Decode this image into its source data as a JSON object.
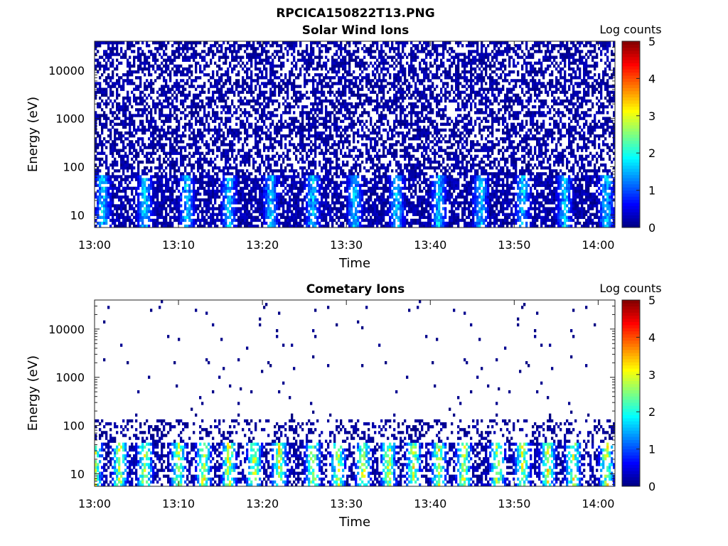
{
  "figure_title": "RPCICA150822T13.PNG",
  "chart_data": [
    {
      "type": "heatmap",
      "title": "Solar Wind Ions",
      "xlabel": "Time",
      "ylabel": "Energy (eV)",
      "x_ticks": [
        "13:00",
        "13:10",
        "13:20",
        "13:30",
        "13:40",
        "13:50",
        "14:00"
      ],
      "x_range": [
        "13:00",
        "14:02"
      ],
      "y_scale": "log",
      "y_ticks": [
        "10",
        "100",
        "1000",
        "10000"
      ],
      "y_range": [
        5.5,
        40000
      ],
      "colorbar": {
        "label": "Log counts",
        "ticks": [
          "0",
          "1",
          "2",
          "3",
          "4",
          "5"
        ],
        "range": [
          0,
          5
        ],
        "colormap": "jet"
      },
      "bands": [
        {
          "e_low": 5.5,
          "e_high": 70,
          "density": 0.75,
          "level_min": 0,
          "level_max": 1.9,
          "peak_period_min": 5.2
        },
        {
          "e_low": 70,
          "e_high": 40000,
          "density": 0.55,
          "level_min": 0,
          "level_max": 0.35,
          "peak_period_min": 0
        }
      ],
      "peaks_at": [
        "13:01",
        "13:06",
        "13:11",
        "13:16",
        "13:21",
        "13:26",
        "13:31",
        "13:36",
        "13:41",
        "13:46",
        "13:51",
        "13:56",
        "14:01"
      ]
    },
    {
      "type": "heatmap",
      "title": "Cometary Ions",
      "xlabel": "Time",
      "ylabel": "Energy (eV)",
      "x_ticks": [
        "13:00",
        "13:10",
        "13:20",
        "13:30",
        "13:40",
        "13:50",
        "14:00"
      ],
      "x_range": [
        "13:00",
        "14:02"
      ],
      "y_scale": "log",
      "y_ticks": [
        "10",
        "100",
        "1000",
        "10000"
      ],
      "y_range": [
        5.5,
        40000
      ],
      "colorbar": {
        "label": "Log counts",
        "ticks": [
          "0",
          "1",
          "2",
          "3",
          "4",
          "5"
        ],
        "range": [
          0,
          5
        ],
        "colormap": "jet"
      },
      "bands": [
        {
          "e_low": 5.5,
          "e_high": 45,
          "density": 0.55,
          "level_min": 0,
          "level_max": 3.4,
          "peak_period_min": 3.2
        },
        {
          "e_low": 45,
          "e_high": 140,
          "density": 0.28,
          "level_min": 0,
          "level_max": 0.25,
          "peak_period_min": 0
        },
        {
          "e_low": 140,
          "e_high": 40000,
          "density": 0.012,
          "level_min": 0,
          "level_max": 0.1,
          "peak_period_min": 0
        }
      ],
      "peaks_at": [
        "13:00",
        "13:03",
        "13:06",
        "13:10",
        "13:13",
        "13:16",
        "13:19",
        "13:22",
        "13:26",
        "13:29",
        "13:32",
        "13:35",
        "13:38",
        "13:41",
        "13:44",
        "13:48",
        "13:51",
        "13:54",
        "13:57",
        "14:01"
      ]
    }
  ]
}
